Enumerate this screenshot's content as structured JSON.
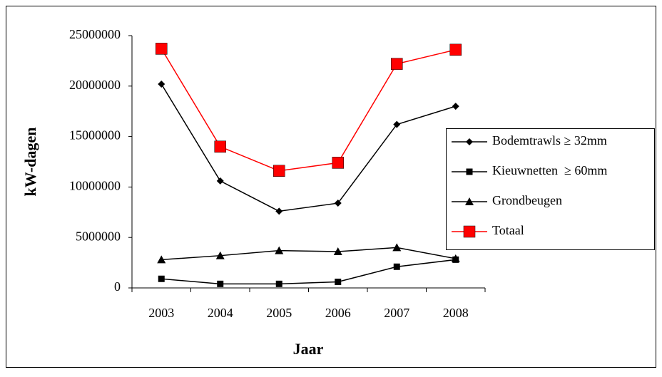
{
  "chart_data": {
    "type": "line",
    "x_label": "Jaar",
    "y_label": "kW-dagen",
    "categories": [
      "2003",
      "2004",
      "2005",
      "2006",
      "2007",
      "2008"
    ],
    "series": [
      {
        "name": "Bodemtrawls ≥ 32mm",
        "color": "#000000",
        "marker": "diamond",
        "values": [
          20200000,
          10600000,
          7600000,
          8400000,
          16200000,
          18000000
        ]
      },
      {
        "name": "Kieuwnetten  ≥ 60mm",
        "color": "#000000",
        "marker": "square",
        "values": [
          900000,
          400000,
          400000,
          600000,
          2100000,
          2800000
        ]
      },
      {
        "name": "Grondbeugen",
        "color": "#000000",
        "marker": "triangle",
        "values": [
          2800000,
          3200000,
          3700000,
          3600000,
          4000000,
          2900000
        ]
      },
      {
        "name": "Totaal",
        "color": "#ff0000",
        "marker": "square",
        "values": [
          23700000,
          14000000,
          11600000,
          12400000,
          22200000,
          23600000
        ]
      }
    ],
    "ylim": [
      0,
      25000000
    ],
    "yticks": [
      0,
      5000000,
      10000000,
      15000000,
      20000000,
      25000000
    ],
    "grid": false,
    "legend": "right"
  }
}
